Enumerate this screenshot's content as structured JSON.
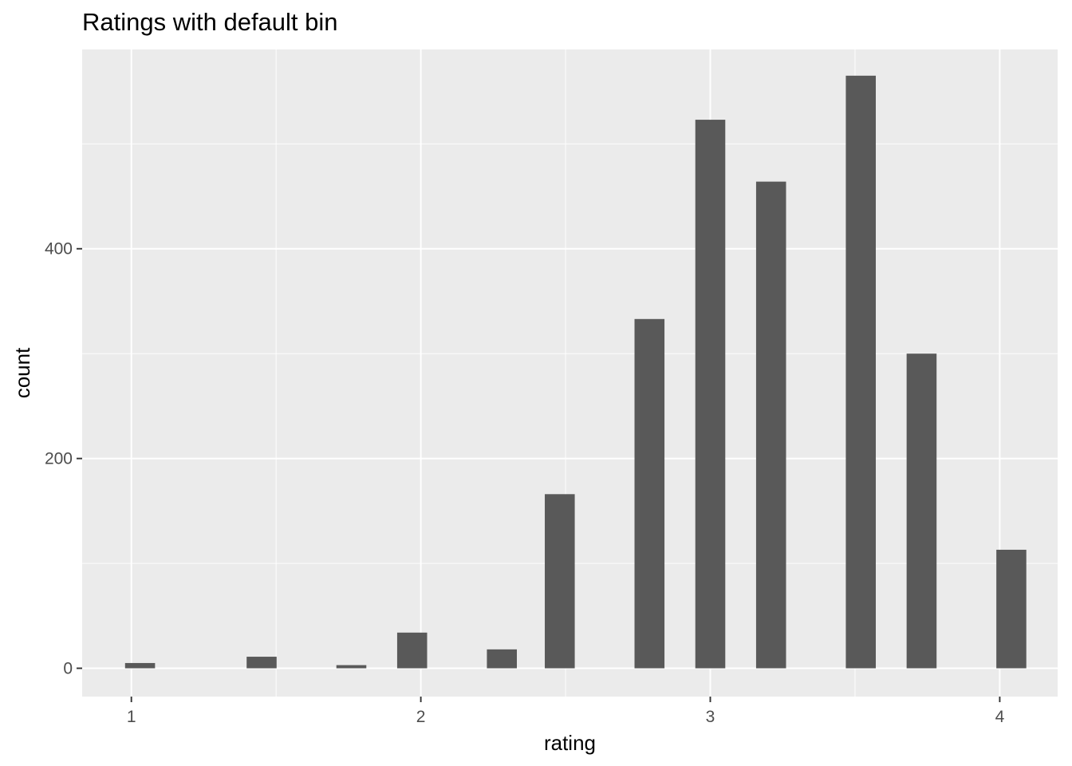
{
  "chart_data": {
    "type": "bar",
    "title": "Ratings with default bin",
    "xlabel": "rating",
    "ylabel": "count",
    "xlim": [
      0.83,
      4.2
    ],
    "ylim": [
      -27,
      590
    ],
    "x_ticks": [
      1,
      2,
      3,
      4
    ],
    "x_tick_labels": [
      "1",
      "2",
      "3",
      "4"
    ],
    "x_minor_grid": [
      1.5,
      2.5,
      3.5
    ],
    "y_ticks": [
      0,
      200,
      400
    ],
    "y_tick_labels": [
      "0",
      "200",
      "400"
    ],
    "y_minor_grid": [
      100,
      300,
      500
    ],
    "bin_width": 0.1035,
    "x": [
      1.03,
      1.45,
      1.76,
      1.97,
      2.28,
      2.48,
      2.79,
      3.0,
      3.21,
      3.52,
      3.73,
      4.04
    ],
    "values": [
      5,
      11,
      3,
      34,
      18,
      166,
      333,
      523,
      464,
      565,
      300,
      113
    ],
    "panel_background": "#ebebeb",
    "grid_color": "#ffffff",
    "bar_color": "#595959",
    "grid": true
  }
}
